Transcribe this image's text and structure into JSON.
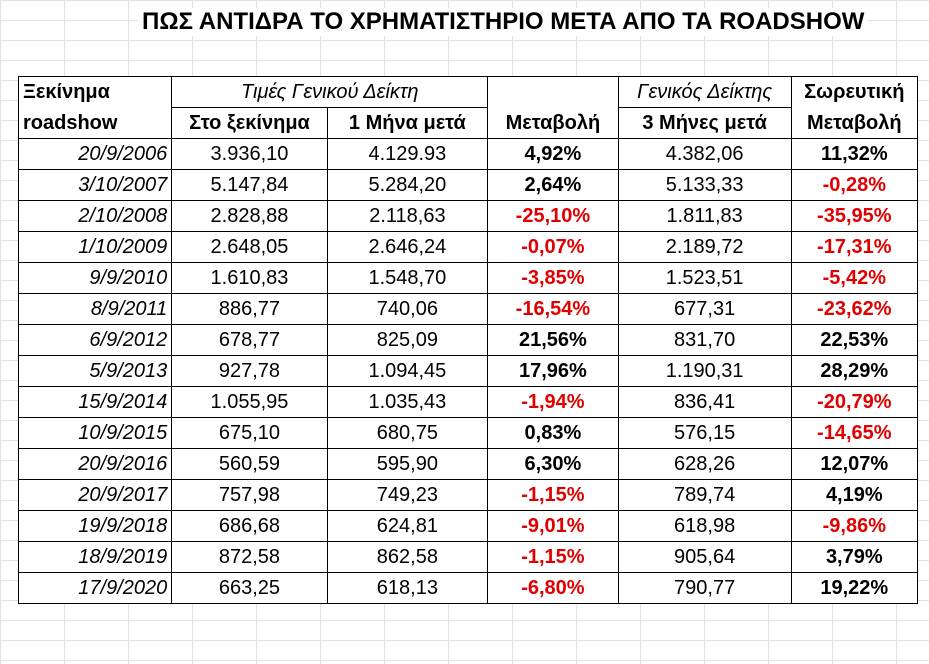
{
  "title": "ΠΩΣ ΑΝΤΙΔΡΑ ΤΟ ΧΡΗΜΑΤΙΣΤΗΡΙΟ ΜΕΤΑ ΑΠΟ ΤΑ ROADSHOW",
  "headers": {
    "start_line1": "Ξεκίνημα",
    "start_line2": "roadshow",
    "prices_group": "Τιμές  Γενικού  Δείκτη",
    "at_start": "Στο ξεκίνημα",
    "one_month": "1 Μήνα μετά",
    "change": "Μεταβολή",
    "index_group": "Γενικός Δείκτης",
    "three_months": "3 Μήνες μετά",
    "cumulative_line1": "Σωρευτική",
    "cumulative_line2": "Μεταβολή"
  },
  "rows": [
    {
      "date": "20/9/2006",
      "start": "3.936,10",
      "m1": "4.129.93",
      "chg": "4,92%",
      "m3": "4.382,06",
      "cum": "11,32%"
    },
    {
      "date": "3/10/2007",
      "start": "5.147,84",
      "m1": "5.284,20",
      "chg": "2,64%",
      "m3": "5.133,33",
      "cum": "-0,28%"
    },
    {
      "date": "2/10/2008",
      "start": "2.828,88",
      "m1": "2.118,63",
      "chg": "-25,10%",
      "m3": "1.811,83",
      "cum": "-35,95%"
    },
    {
      "date": "1/10/2009",
      "start": "2.648,05",
      "m1": "2.646,24",
      "chg": "-0,07%",
      "m3": "2.189,72",
      "cum": "-17,31%"
    },
    {
      "date": "9/9/2010",
      "start": "1.610,83",
      "m1": "1.548,70",
      "chg": "-3,85%",
      "m3": "1.523,51",
      "cum": "-5,42%"
    },
    {
      "date": "8/9/2011",
      "start": "886,77",
      "m1": "740,06",
      "chg": "-16,54%",
      "m3": "677,31",
      "cum": "-23,62%"
    },
    {
      "date": "6/9/2012",
      "start": "678,77",
      "m1": "825,09",
      "chg": "21,56%",
      "m3": "831,70",
      "cum": "22,53%"
    },
    {
      "date": "5/9/2013",
      "start": "927,78",
      "m1": "1.094,45",
      "chg": "17,96%",
      "m3": "1.190,31",
      "cum": "28,29%"
    },
    {
      "date": "15/9/2014",
      "start": "1.055,95",
      "m1": "1.035,43",
      "chg": "-1,94%",
      "m3": "836,41",
      "cum": "-20,79%"
    },
    {
      "date": "10/9/2015",
      "start": "675,10",
      "m1": "680,75",
      "chg": "0,83%",
      "m3": "576,15",
      "cum": "-14,65%"
    },
    {
      "date": "20/9/2016",
      "start": "560,59",
      "m1": "595,90",
      "chg": "6,30%",
      "m3": "628,26",
      "cum": "12,07%"
    },
    {
      "date": "20/9/2017",
      "start": "757,98",
      "m1": "749,23",
      "chg": "-1,15%",
      "m3": "789,74",
      "cum": "4,19%"
    },
    {
      "date": "19/9/2018",
      "start": "686,68",
      "m1": "624,81",
      "chg": "-9,01%",
      "m3": "618,98",
      "cum": "-9,86%"
    },
    {
      "date": "18/9/2019",
      "start": "872,58",
      "m1": "862,58",
      "chg": "-1,15%",
      "m3": "905,64",
      "cum": "3,79%"
    },
    {
      "date": "17/9/2020",
      "start": "663,25",
      "m1": "618,13",
      "chg": "-6,80%",
      "m3": "790,77",
      "cum": "19,22%"
    }
  ]
}
